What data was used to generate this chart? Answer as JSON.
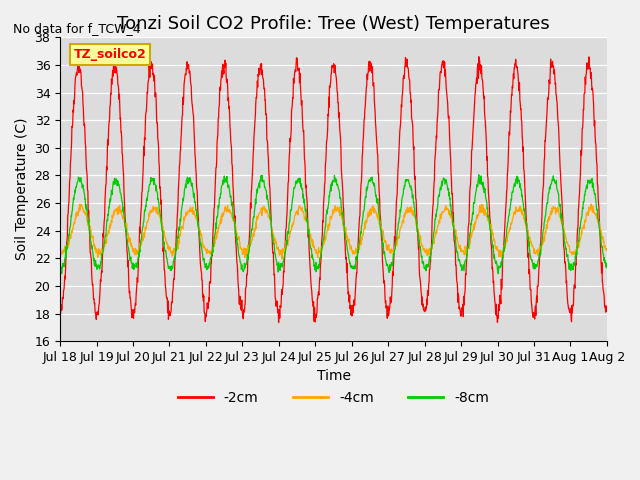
{
  "title": "Tonzi Soil CO2 Profile: Tree (West) Temperatures",
  "no_data_text": "No data for f_TCW_4",
  "legend_label_text": "TZ_soilco2",
  "xlabel": "Time",
  "ylabel": "Soil Temperature (C)",
  "ylim": [
    16,
    38
  ],
  "yticks": [
    16,
    18,
    20,
    22,
    24,
    26,
    28,
    30,
    32,
    34,
    36,
    38
  ],
  "series": [
    {
      "label": "-2cm",
      "color": "#ff0000"
    },
    {
      "label": "-4cm",
      "color": "#ffa500"
    },
    {
      "label": "-8cm",
      "color": "#00cc00"
    }
  ],
  "xtick_labels": [
    "Jul 18",
    "Jul 19",
    "Jul 20",
    "Jul 21",
    "Jul 22",
    "Jul 23",
    "Jul 24",
    "Jul 25",
    "Jul 26",
    "Jul 27",
    "Jul 28",
    "Jul 29",
    "Jul 30",
    "Jul 31",
    "Aug 1",
    "Aug 2"
  ],
  "xtick_positions": [
    0,
    1,
    2,
    3,
    4,
    5,
    6,
    7,
    8,
    9,
    10,
    11,
    12,
    13,
    14,
    15
  ],
  "bg_color": "#e8e8e8",
  "plot_bg_color": "#dcdcdc",
  "title_fontsize": 13,
  "label_fontsize": 10,
  "tick_fontsize": 9
}
